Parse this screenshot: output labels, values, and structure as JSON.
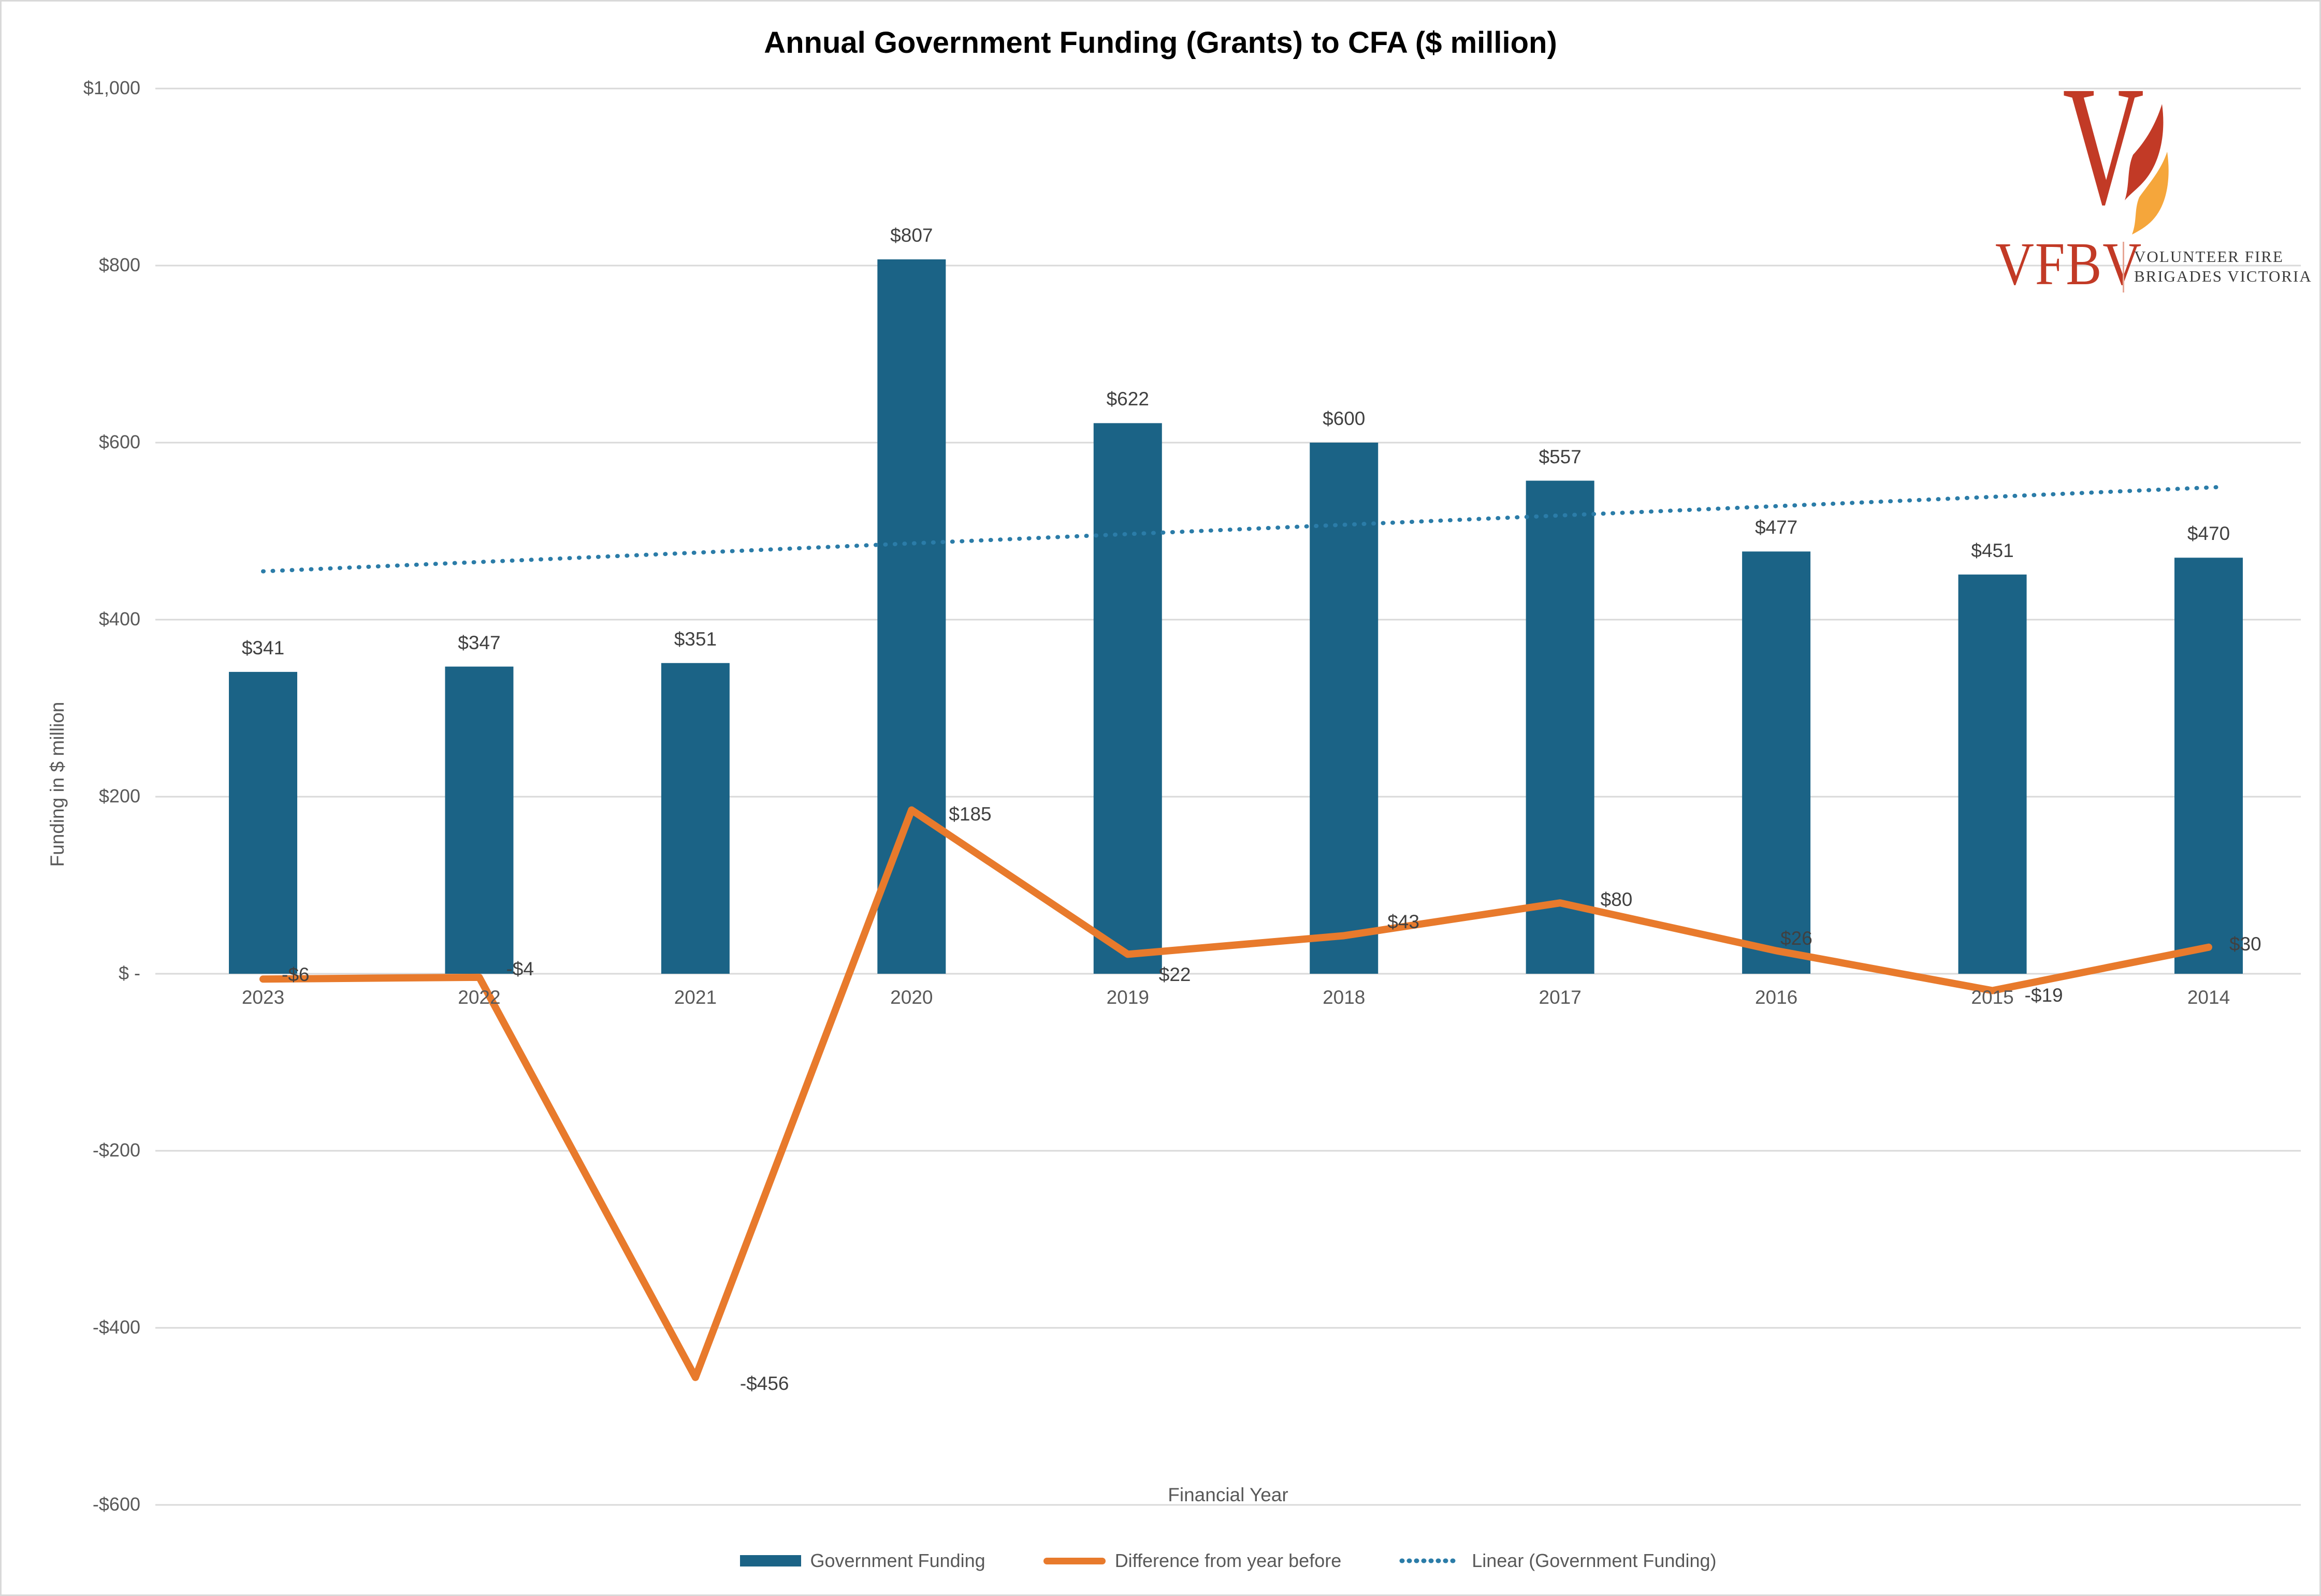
{
  "title": "Annual Government Funding (Grants) to CFA ($ million)",
  "chart_data": {
    "type": "bar",
    "title": "Annual Government Funding (Grants) to CFA ($ million)",
    "categories": [
      "2023",
      "2022",
      "2021",
      "2020",
      "2019",
      "2018",
      "2017",
      "2016",
      "2015",
      "2014"
    ],
    "series": [
      {
        "name": "Government Funding",
        "type": "bar",
        "color": "#1B6386",
        "values": [
          341,
          347,
          351,
          807,
          622,
          600,
          557,
          477,
          451,
          470
        ],
        "data_labels": [
          "$341",
          "$347",
          "$351",
          "$807",
          "$622",
          "$600",
          "$557",
          "$477",
          "$451",
          "$470"
        ]
      },
      {
        "name": "Difference from year before",
        "type": "line",
        "color": "#E87A2C",
        "values": [
          -6,
          -4,
          -456,
          185,
          22,
          43,
          80,
          26,
          -19,
          30
        ],
        "data_labels": [
          "-$6",
          "-$4",
          "-$456",
          "$185",
          "$22",
          "$43",
          "$80",
          "$26",
          "-$19",
          "$30"
        ]
      },
      {
        "name": "Linear (Government Funding)",
        "type": "linear_trendline",
        "color": "#2B7CA8",
        "style": "dotted",
        "endpoints": [
          454.6,
          549.9
        ]
      }
    ],
    "xlabel": "Financial Year",
    "ylabel": "Funding in $ million",
    "ylim": [
      -600,
      1000
    ],
    "ytick_step": 200,
    "yticks": [
      {
        "label": "$1,000",
        "v": 1000
      },
      {
        "label": "$800",
        "v": 800
      },
      {
        "label": "$600",
        "v": 600
      },
      {
        "label": "$400",
        "v": 400
      },
      {
        "label": "$200",
        "v": 200
      },
      {
        "label": "$ -",
        "v": 0
      },
      {
        "label": "-$200",
        "v": -200
      },
      {
        "label": "-$400",
        "v": -400
      },
      {
        "label": "-$600",
        "v": -600
      }
    ],
    "grid": "horizontal",
    "legend_position": "bottom",
    "colors": {
      "grid": "#D9D9D9",
      "data_label": "#404040",
      "axis_label": "#595959",
      "title": "#000000"
    }
  },
  "legend": {
    "items": [
      {
        "label": "Government Funding",
        "swatch": "bar",
        "color": "#1B6386"
      },
      {
        "label": "Difference from year before",
        "swatch": "line",
        "color": "#E87A2C"
      },
      {
        "label": "Linear (Government Funding)",
        "swatch": "dotted",
        "color": "#2B7CA8"
      }
    ]
  },
  "logo": {
    "acronym": "VFBV",
    "v_letter": "V",
    "name_line1": "VOLUNTEER FIRE",
    "name_line2": "BRIGADES VICTORIA",
    "red": "#C23A26",
    "amber": "#F5A63B"
  }
}
